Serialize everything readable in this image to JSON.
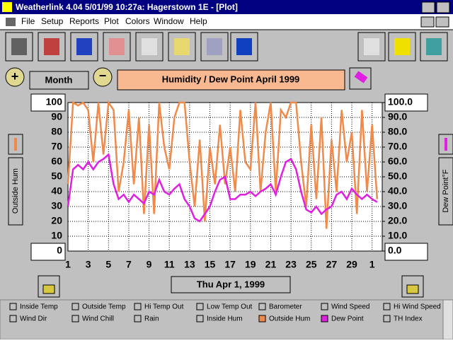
{
  "window": {
    "title": "Weatherlink 4.04   5/01/99  10:27a: Hagerstown 1E - [Plot]",
    "menu": [
      "File",
      "Setup",
      "Reports",
      "Plot",
      "Colors",
      "Window",
      "Help"
    ]
  },
  "controls": {
    "period": "Month",
    "date": "Thu Apr 1, 1999",
    "left_axis_label": "Outside Hum",
    "right_axis_label": "Dew Point°F"
  },
  "legend_items": [
    "Inside Temp",
    "Outside Temp",
    "Hi Temp Out",
    "Low Temp Out",
    "Barometer",
    "Wind Speed",
    "Hi Wind Speed",
    "Wind Dir",
    "Wind Chill",
    "Rain",
    "Inside Hum",
    "Outside Hum",
    "Dew Point",
    "TH Index"
  ],
  "chart_data": {
    "type": "line",
    "title": "Humidity  /  Dew Point   April 1999",
    "x": [
      1,
      1.5,
      2,
      2.5,
      3,
      3.5,
      4,
      4.5,
      5,
      5.5,
      6,
      6.5,
      7,
      7.5,
      8,
      8.5,
      9,
      9.5,
      10,
      10.5,
      11,
      11.5,
      12,
      12.5,
      13,
      13.5,
      14,
      14.5,
      15,
      15.5,
      16,
      16.5,
      17,
      17.5,
      18,
      18.5,
      19,
      19.5,
      20,
      20.5,
      21,
      21.5,
      22,
      22.5,
      23,
      23.5,
      24,
      24.5,
      25,
      25.5,
      26,
      26.5,
      27,
      27.5,
      28,
      28.5,
      29,
      29.5,
      30,
      30.5,
      31,
      31.5
    ],
    "series": [
      {
        "name": "Outside Hum",
        "color": "#f08a4b",
        "values": [
          45,
          100,
          98,
          100,
          95,
          60,
          100,
          65,
          100,
          95,
          40,
          60,
          95,
          45,
          90,
          25,
          85,
          25,
          100,
          70,
          55,
          90,
          100,
          100,
          60,
          30,
          75,
          20,
          70,
          45,
          85,
          45,
          70,
          40,
          95,
          60,
          55,
          100,
          40,
          80,
          100,
          40,
          95,
          90,
          100,
          100,
          60,
          30,
          85,
          35,
          90,
          15,
          75,
          40,
          95,
          60,
          80,
          25,
          95,
          40,
          85,
          35
        ]
      },
      {
        "name": "Dew Point",
        "color": "#e020e0",
        "axis": "y2",
        "values": [
          30,
          55,
          58,
          55,
          60,
          55,
          60,
          62,
          65,
          45,
          35,
          38,
          33,
          38,
          35,
          32,
          40,
          38,
          48,
          40,
          38,
          42,
          45,
          35,
          30,
          22,
          20,
          25,
          30,
          40,
          48,
          50,
          35,
          35,
          38,
          38,
          40,
          37,
          40,
          42,
          45,
          38,
          50,
          60,
          62,
          55,
          40,
          28,
          26,
          30,
          25,
          28,
          30,
          38,
          40,
          35,
          42,
          38,
          35,
          38,
          35,
          33
        ]
      }
    ],
    "xlim": [
      1,
      32
    ],
    "xticks": [
      1,
      3,
      5,
      7,
      9,
      11,
      13,
      15,
      17,
      19,
      21,
      23,
      25,
      27,
      29,
      {
        "value": 31,
        "label": "1"
      }
    ],
    "ylim": [
      0,
      100
    ],
    "yticks": [
      0,
      10,
      20,
      30,
      40,
      50,
      60,
      70,
      80,
      90,
      100
    ],
    "y2lim": [
      0,
      100
    ],
    "y2ticks": [
      {
        "value": 0,
        "label": "0.0"
      },
      {
        "value": 10,
        "label": "10.0"
      },
      {
        "value": 20,
        "label": "20.0"
      },
      {
        "value": 30,
        "label": "30.0"
      },
      {
        "value": 40,
        "label": "40.0"
      },
      {
        "value": 50,
        "label": "50.0"
      },
      {
        "value": 60,
        "label": "60.0"
      },
      {
        "value": 70,
        "label": "70.0"
      },
      {
        "value": 80,
        "label": "80.0"
      },
      {
        "value": 90,
        "label": "90.0"
      },
      {
        "value": 100,
        "label": "100.0"
      }
    ],
    "grid": true
  }
}
